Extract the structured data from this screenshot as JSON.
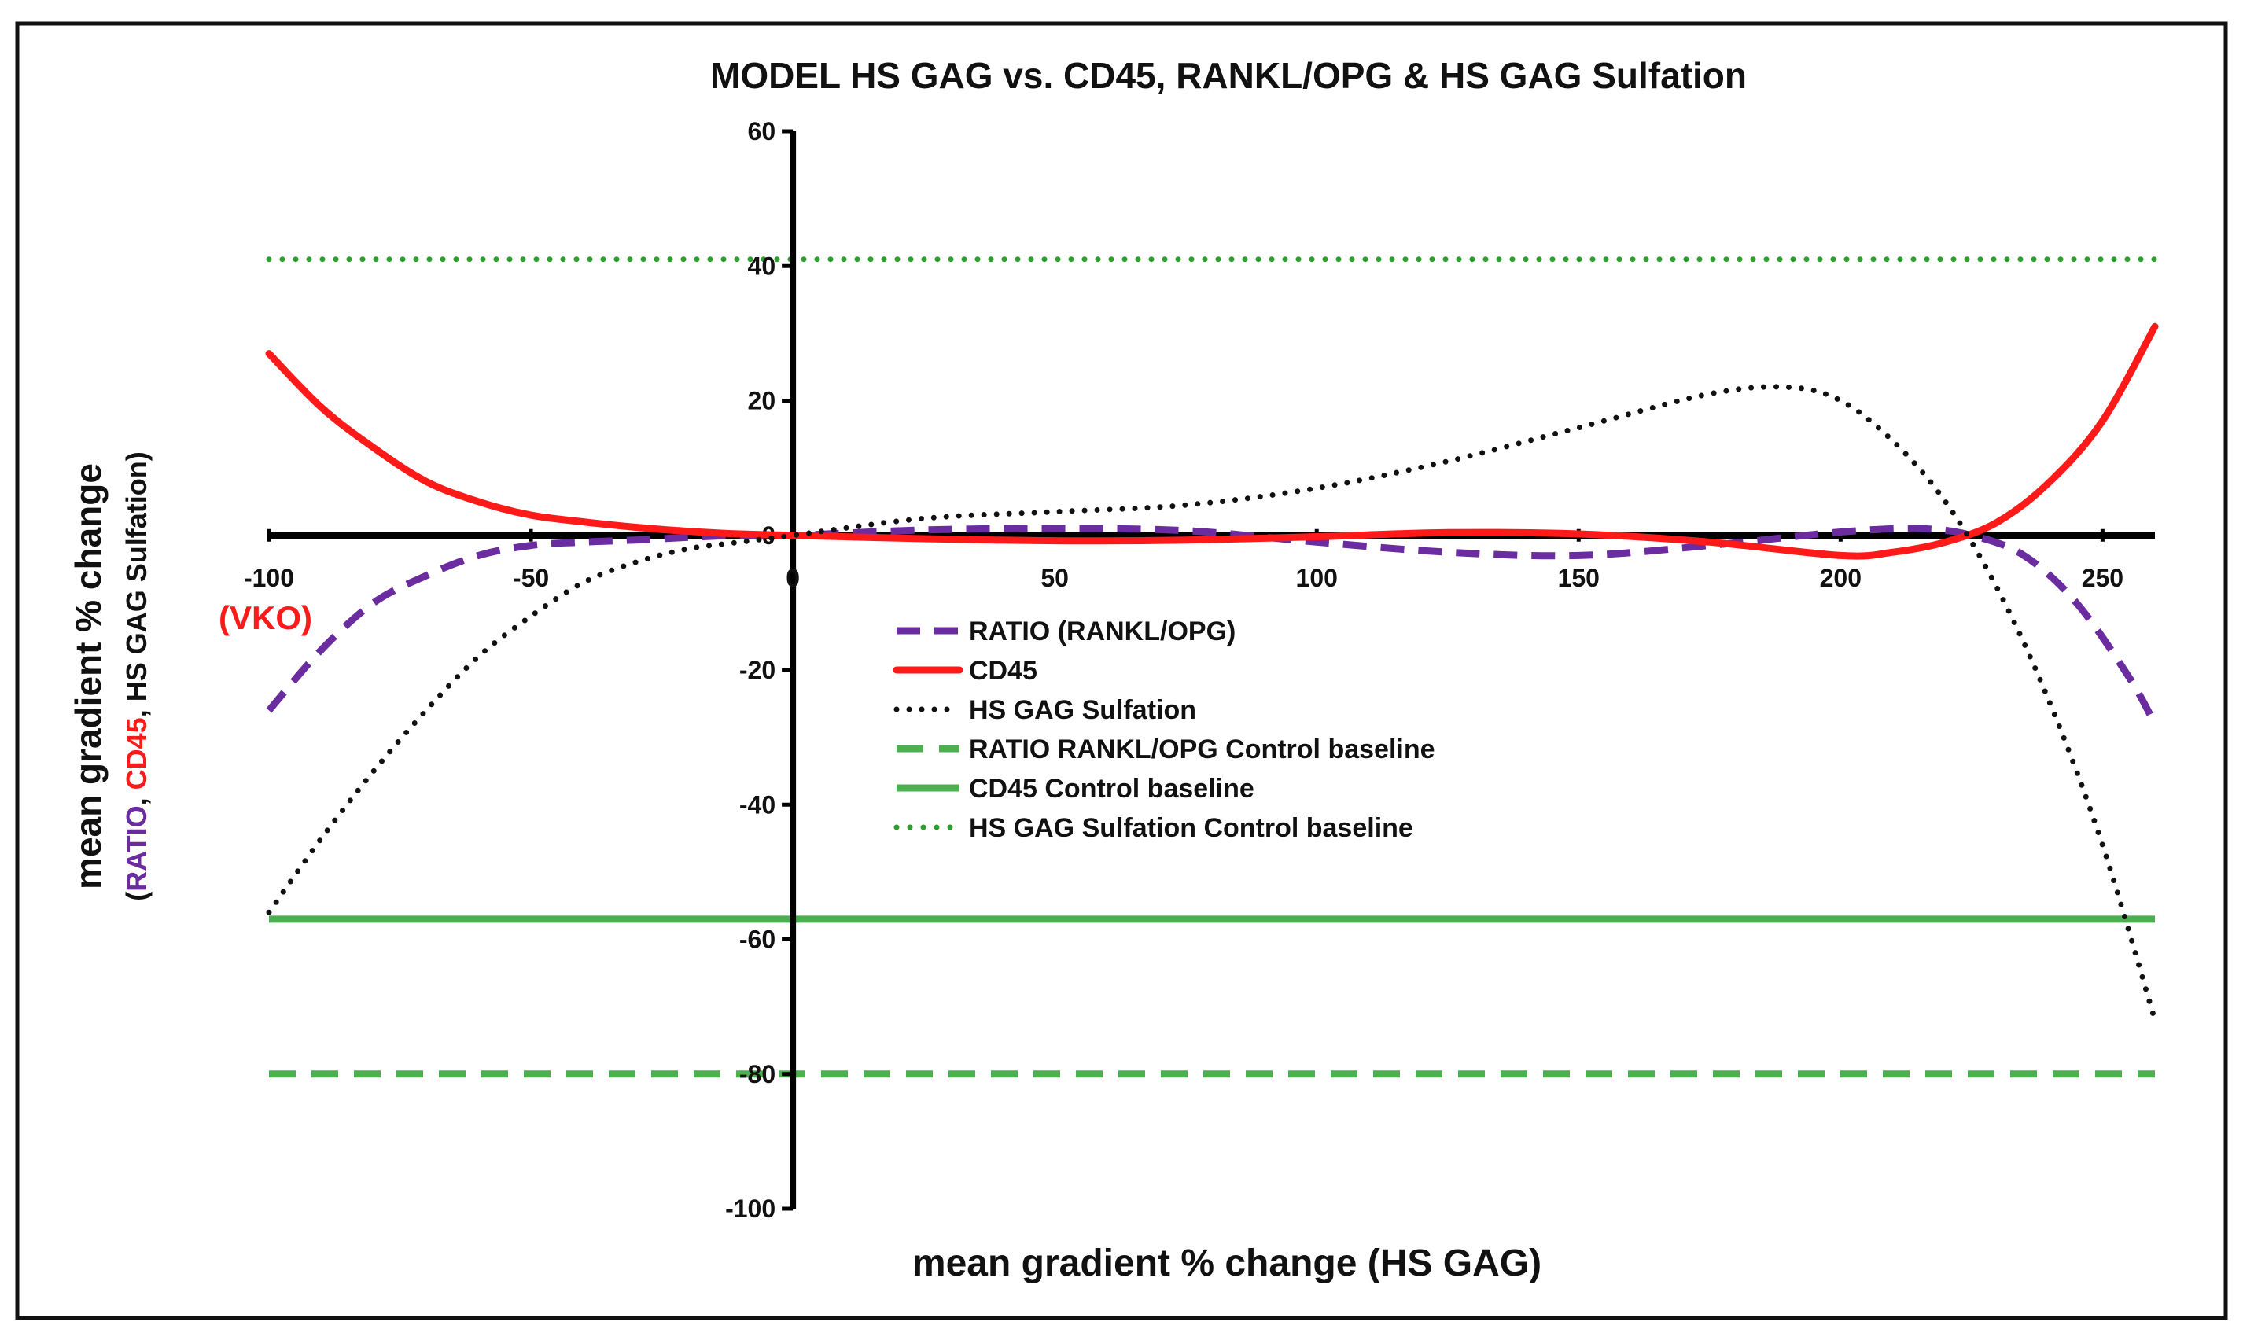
{
  "chart_data": {
    "type": "line",
    "title": "MODEL HS GAG vs. CD45, RANKL/OPG & HS GAG Sulfation",
    "xlabel": "mean gradient % change (HS GAG)",
    "ylabel": "mean gradient % change",
    "ylabel_sub": {
      "open": "(",
      "ratio": "RATIO",
      "sep1": ", ",
      "cd45": "CD45",
      "rest": ", HS GAG Sulfation)"
    },
    "xlim": [
      -100,
      260
    ],
    "ylim": [
      -100,
      60
    ],
    "x_ticks": [
      -100,
      -50,
      0,
      50,
      100,
      150,
      200,
      250
    ],
    "y_ticks": [
      60,
      40,
      20,
      0,
      -20,
      -40,
      -60,
      -80,
      -100
    ],
    "annotation": "(VKO)",
    "colors": {
      "ratio": "#6a2c9e",
      "cd45": "#ff1a1a",
      "sulfation": "#111111",
      "baseline": "#4caf50",
      "baseline_dotted": "#2e9e2e",
      "axis": "#000000",
      "annotation": "#ff1a1a"
    },
    "series": [
      {
        "name": "RATIO (RANKL/OPG)",
        "key": "ratio",
        "style": "dashed",
        "x": [
          -100,
          -90,
          -80,
          -70,
          -60,
          -50,
          -40,
          -30,
          -20,
          -10,
          0,
          25,
          50,
          75,
          100,
          125,
          150,
          175,
          200,
          215,
          225,
          235,
          245,
          255,
          260
        ],
        "y": [
          -26,
          -17,
          -10,
          -6,
          -3,
          -1.5,
          -1,
          -0.7,
          -0.3,
          0,
          0,
          0.8,
          1,
          0.7,
          -1,
          -2.5,
          -3,
          -1.5,
          0.5,
          1,
          0,
          -3,
          -10,
          -21,
          -28
        ]
      },
      {
        "name": "CD45",
        "key": "cd45",
        "style": "solid",
        "x": [
          -100,
          -90,
          -80,
          -70,
          -60,
          -50,
          -40,
          -30,
          -20,
          -10,
          0,
          25,
          50,
          75,
          100,
          125,
          150,
          175,
          200,
          210,
          220,
          230,
          240,
          250,
          260
        ],
        "y": [
          27,
          19,
          13,
          8,
          5,
          3,
          2,
          1.2,
          0.6,
          0.2,
          0,
          -0.5,
          -0.8,
          -0.7,
          -0.2,
          0.4,
          0.2,
          -1,
          -3,
          -2.5,
          -1,
          2,
          8,
          17,
          31
        ]
      },
      {
        "name": "HS GAG Sulfation",
        "key": "sulfation",
        "style": "dotted",
        "x": [
          -100,
          -90,
          -80,
          -70,
          -60,
          -50,
          -40,
          -30,
          -20,
          -10,
          0,
          25,
          50,
          75,
          100,
          125,
          150,
          175,
          190,
          200,
          210,
          220,
          230,
          240,
          250,
          260
        ],
        "y": [
          -56,
          -45,
          -35,
          -26,
          -18,
          -12,
          -7,
          -4,
          -2,
          -1,
          0,
          2.5,
          3.5,
          4.5,
          7,
          11,
          16,
          21,
          22,
          20,
          14,
          5,
          -8,
          -25,
          -46,
          -72
        ]
      },
      {
        "name": "RATIO RANKL/OPG Control baseline",
        "key": "ratio_baseline",
        "style": "dashed",
        "x": [
          -100,
          260
        ],
        "y": [
          -80,
          -80
        ]
      },
      {
        "name": "CD45 Control baseline",
        "key": "cd45_baseline",
        "style": "solid",
        "x": [
          -100,
          260
        ],
        "y": [
          -57,
          -57
        ]
      },
      {
        "name": "HS GAG Sulfation Control baseline",
        "key": "sulfation_baseline",
        "style": "dotted",
        "x": [
          -100,
          260
        ],
        "y": [
          41,
          41
        ]
      }
    ],
    "legend": {
      "placement": "center",
      "entries": [
        "RATIO (RANKL/OPG)",
        "CD45",
        "HS GAG Sulfation",
        "RATIO RANKL/OPG Control baseline",
        "CD45 Control baseline",
        "HS GAG Sulfation Control baseline"
      ]
    }
  }
}
